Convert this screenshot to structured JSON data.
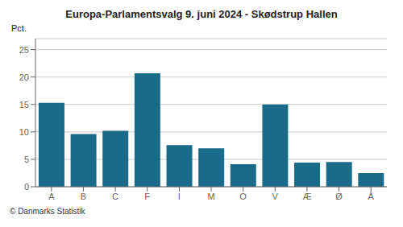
{
  "chart_data": {
    "type": "bar",
    "title": "Europa-Parlamentsvalg 9. juni 2024 - Skødstrup Hallen",
    "categories": [
      "A",
      "B",
      "C",
      "F",
      "I",
      "M",
      "O",
      "V",
      "Æ",
      "Ø",
      "Å"
    ],
    "values": [
      15.3,
      9.6,
      10.2,
      20.7,
      7.6,
      7.0,
      4.1,
      15.0,
      4.4,
      4.5,
      2.5
    ],
    "color": "#1a6b8a",
    "ylabel": "Pct.",
    "ylim": [
      0,
      27
    ],
    "yticks": [
      0,
      5,
      10,
      15,
      20,
      25
    ],
    "grid": true,
    "annotations": [
      "© Danmarks Statistik"
    ]
  }
}
